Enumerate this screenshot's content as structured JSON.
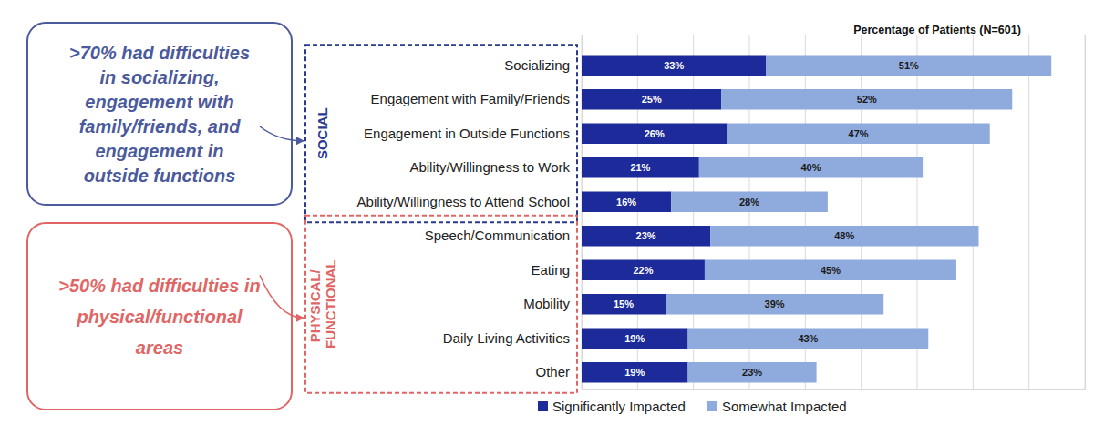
{
  "chart_data": {
    "type": "bar",
    "orientation": "horizontal",
    "stacked": true,
    "data_labels": true,
    "grid": true,
    "tick_labels": "y",
    "legend": "bottom",
    "xlabel": "Percentage of Patients (N=601)",
    "xlim": [
      0,
      90
    ],
    "xticks": [
      0,
      10,
      20,
      30,
      40,
      50,
      60,
      70,
      80,
      90
    ],
    "categories": [
      "Socializing",
      "Engagement with Family/Friends",
      "Engagement in Outside Functions",
      "Ability/Willingness to Work",
      "Ability/Willingness to Attend School",
      "Speech/Communication",
      "Eating",
      "Mobility",
      "Daily Living Activities",
      "Other"
    ],
    "series": [
      {
        "name": "Significantly Impacted",
        "color": "#1c2b99",
        "values": [
          33,
          25,
          26,
          21,
          16,
          23,
          22,
          15,
          19,
          19
        ],
        "value_labels": [
          "33%",
          "25%",
          "26%",
          "21%",
          "16%",
          "23%",
          "22%",
          "15%",
          "19%",
          "19%"
        ]
      },
      {
        "name": "Somewhat Impacted",
        "color": "#8faadc",
        "values": [
          51,
          52,
          47,
          40,
          28,
          48,
          45,
          39,
          43,
          23
        ],
        "value_labels": [
          "51%",
          "52%",
          "47%",
          "40%",
          "28%",
          "48%",
          "45%",
          "39%",
          "43%",
          "23%"
        ]
      }
    ],
    "groups": [
      {
        "label": "SOCIAL",
        "color": "#2b3a8f",
        "categories": [
          "Socializing",
          "Engagement with Family/Friends",
          "Engagement in Outside Functions",
          "Ability/Willingness to Work",
          "Ability/Willingness to Attend School"
        ]
      },
      {
        "label": "PHYSICAL/ FUNCTIONAL",
        "color": "#e06666",
        "categories": [
          "Speech/Communication",
          "Eating",
          "Mobility",
          "Daily Living Activities",
          "Other"
        ]
      }
    ],
    "annotations": [
      {
        "text": [
          ">70% had difficulties",
          "in socializing,",
          "engagement with",
          "family/friends, and",
          "engagement in",
          "outside functions"
        ],
        "color": "#4a5a9c"
      },
      {
        "text": [
          ">50% had difficulties in",
          "physical/functional",
          "areas"
        ],
        "color": "#e06666"
      }
    ]
  }
}
